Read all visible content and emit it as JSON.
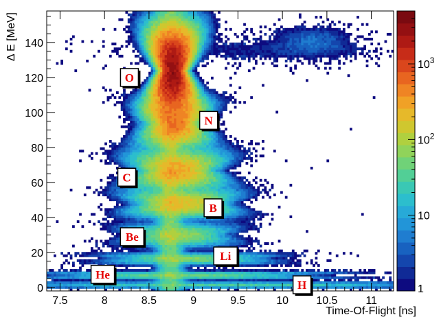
{
  "chart_data": {
    "type": "heatmap",
    "title": "",
    "xlabel": "Time-Of-Flight [ns]",
    "ylabel": "Δ E [MeV]",
    "xlim": [
      7.35,
      11.25
    ],
    "ylim": [
      -2,
      158
    ],
    "x_ticks": [
      7.5,
      8,
      8.5,
      9,
      9.5,
      10,
      10.5,
      11
    ],
    "y_ticks": [
      0,
      20,
      40,
      60,
      80,
      100,
      120,
      140
    ],
    "colorbar": {
      "scale": "log",
      "range": [
        1,
        5000
      ],
      "tick_values": [
        1,
        10,
        100,
        1000
      ],
      "tick_labels": [
        "1",
        "10",
        "10²",
        "10³"
      ],
      "colors": [
        "#0d0b80",
        "#102a96",
        "#1446ad",
        "#1862c0",
        "#1f7dd0",
        "#2295d8",
        "#27aad8",
        "#2cbecd",
        "#3ac8b4",
        "#52cf96",
        "#70d278",
        "#90d35a",
        "#b0d03f",
        "#cfc72f",
        "#e6b92a",
        "#f0a126",
        "#ef8424",
        "#e86520",
        "#da461c",
        "#c72c18",
        "#ae1a14",
        "#941012",
        "#7a0a10"
      ]
    },
    "ion_labels": [
      {
        "text": "O",
        "x": 8.28,
        "y": 120
      },
      {
        "text": "N",
        "x": 9.17,
        "y": 95.5
      },
      {
        "text": "C",
        "x": 8.25,
        "y": 63
      },
      {
        "text": "B",
        "x": 9.22,
        "y": 45.5
      },
      {
        "text": "Be",
        "x": 8.31,
        "y": 29
      },
      {
        "text": "Li",
        "x": 9.36,
        "y": 18
      },
      {
        "text": "He",
        "x": 7.98,
        "y": 7.5
      },
      {
        "text": "H",
        "x": 10.22,
        "y": 1.5
      }
    ],
    "ion_loci": [
      {
        "name": "O",
        "x": 8.77,
        "y": 124,
        "sx": 0.06,
        "sy": 10.5,
        "peak": 3000,
        "tailx": 0.04
      },
      {
        "name": "N",
        "x": 8.79,
        "y": 94,
        "sx": 0.11,
        "sy": 6,
        "peak": 500,
        "tailx": 0.05
      },
      {
        "name": "C",
        "x": 8.82,
        "y": 67,
        "sx": 0.17,
        "sy": 5,
        "peak": 300,
        "tailx": 0.06
      },
      {
        "name": "B",
        "x": 8.87,
        "y": 48,
        "sx": 0.2,
        "sy": 3.5,
        "peak": 200,
        "tailx": 0.07
      },
      {
        "name": "Be",
        "x": 8.83,
        "y": 30,
        "sx": 0.22,
        "sy": 3,
        "peak": 80,
        "tailx": 0.08
      },
      {
        "name": "Li",
        "x": 8.95,
        "y": 16.5,
        "sx": 0.35,
        "sy": 1.6,
        "peak": 60,
        "tailx": 0.12
      },
      {
        "name": "He",
        "x": 8.9,
        "y": 7,
        "sx": 0.6,
        "sy": 1.1,
        "peak": 50,
        "tailx": 0.22
      },
      {
        "name": "H",
        "x": 9.3,
        "y": 1.5,
        "sx": 1.1,
        "sy": 0.9,
        "peak": 30,
        "tailx": 0.3
      },
      {
        "name": "column",
        "x": 8.74,
        "y": 78,
        "sx": 0.06,
        "sy": 75,
        "peak": 60,
        "tailx": 0.02
      },
      {
        "name": "upper-cluster",
        "x": 10.35,
        "y": 141,
        "sx": 0.22,
        "sy": 5,
        "peak": 4,
        "tailx": 0.05
      },
      {
        "name": "upper-band",
        "x": 9.6,
        "y": 136,
        "sx": 0.8,
        "sy": 5,
        "peak": 1.4,
        "tailx": 0.1
      }
    ]
  }
}
